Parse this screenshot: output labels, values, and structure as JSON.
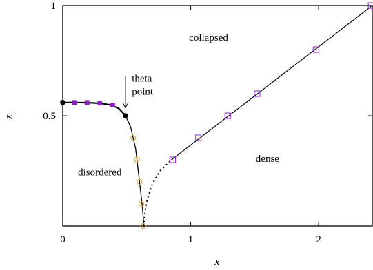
{
  "chart_data": {
    "type": "scatter",
    "xlabel": "x",
    "ylabel": "z",
    "xlim": [
      0,
      2.42
    ],
    "ylim": [
      0,
      1
    ],
    "x_ticks": [
      {
        "value": 0,
        "label": "0"
      },
      {
        "value": 1,
        "label": "1"
      },
      {
        "value": 2,
        "label": "2"
      }
    ],
    "y_ticks": [
      {
        "value": 0.5,
        "label": "0.5"
      },
      {
        "value": 1,
        "label": "1"
      }
    ],
    "grid": false,
    "legend": "none",
    "annotations": [
      {
        "text": "collapsed",
        "x": 1.14,
        "y": 0.84
      },
      {
        "text": "dense",
        "x": 1.6,
        "y": 0.29
      },
      {
        "text": "disordered",
        "x": 0.29,
        "y": 0.23
      },
      {
        "text": "theta",
        "x": 0.54,
        "y": 0.655
      },
      {
        "text": "point",
        "x": 0.54,
        "y": 0.595
      }
    ],
    "theta_arrow": {
      "from": [
        0.49,
        0.68
      ],
      "to": [
        0.49,
        0.535
      ]
    },
    "series": [
      {
        "role": "line",
        "style": "solid",
        "color": "#000000",
        "width": 2.2,
        "x": [
          0,
          0.1,
          0.2,
          0.3,
          0.38,
          0.44,
          0.49
        ],
        "y": [
          0.56,
          0.56,
          0.559,
          0.556,
          0.548,
          0.532,
          0.5
        ]
      },
      {
        "role": "line",
        "style": "solid",
        "color": "#000000",
        "width": 1.3,
        "x": [
          0.49,
          0.53,
          0.57,
          0.6,
          0.62,
          0.635
        ],
        "y": [
          0.5,
          0.45,
          0.35,
          0.2,
          0.1,
          0
        ]
      },
      {
        "role": "line",
        "style": "dotted",
        "color": "#000000",
        "width": 2.2,
        "x": [
          0.635,
          0.64,
          0.66,
          0.7,
          0.76,
          0.85
        ],
        "y": [
          0,
          0.05,
          0.12,
          0.19,
          0.25,
          0.3
        ]
      },
      {
        "role": "line",
        "style": "solid",
        "color": "#000000",
        "width": 1.2,
        "x": [
          0.85,
          2.42
        ],
        "y": [
          0.3,
          1.0
        ]
      },
      {
        "role": "points",
        "marker": "filled-circle",
        "color": "#000000",
        "x": [
          0,
          0.49
        ],
        "y": [
          0.56,
          0.5
        ]
      },
      {
        "role": "points",
        "marker": "filled-square",
        "color": "#8a1fc4",
        "x": [
          0.09,
          0.19,
          0.29,
          0.39
        ],
        "y": [
          0.56,
          0.56,
          0.558,
          0.548
        ]
      },
      {
        "role": "points",
        "marker": "open-circle",
        "color": "#e6a23c",
        "x": [
          0.55,
          0.58,
          0.6,
          0.615,
          0.63
        ],
        "y": [
          0.4,
          0.3,
          0.2,
          0.1,
          0
        ]
      },
      {
        "role": "points",
        "marker": "open-square",
        "color": "#9b30d8",
        "x": [
          0.86,
          1.06,
          1.29,
          1.52,
          1.98,
          2.41
        ],
        "y": [
          0.3,
          0.4,
          0.5,
          0.6,
          0.8,
          1.0
        ]
      }
    ]
  }
}
